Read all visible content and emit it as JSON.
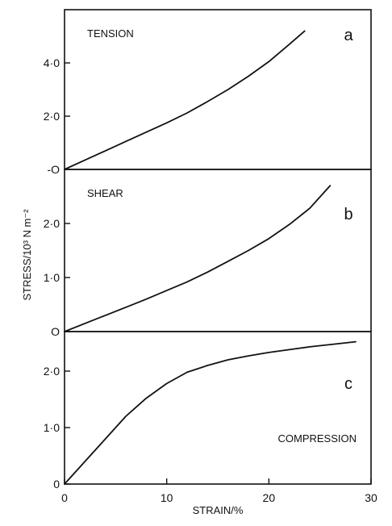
{
  "chart_data": {
    "type": "line",
    "xlabel": "STRAIN/%",
    "ylabel": "STRESS/10³ N m⁻²",
    "xlim": [
      0,
      30
    ],
    "x_ticks": [
      "0",
      "10",
      "20",
      "30"
    ],
    "panels": [
      {
        "letter": "a",
        "label": "TENSION",
        "ylim": [
          0,
          6.0
        ],
        "y_ticks": [
          {
            "value": 0,
            "label": "-O"
          },
          {
            "value": 2.0,
            "label": "2·0"
          },
          {
            "value": 4.0,
            "label": "4·0"
          }
        ],
        "series": [
          {
            "x": [
              0,
              2,
              4,
              6,
              8,
              10,
              12,
              14,
              16,
              18,
              20,
              22,
              23.5
            ],
            "y": [
              0,
              0.35,
              0.7,
              1.05,
              1.4,
              1.75,
              2.12,
              2.55,
              3.0,
              3.5,
              4.05,
              4.7,
              5.2
            ]
          }
        ]
      },
      {
        "letter": "b",
        "label": "SHEAR",
        "ylim": [
          0,
          3.0
        ],
        "y_ticks": [
          {
            "value": 0,
            "label": "O"
          },
          {
            "value": 1.0,
            "label": "1·0"
          },
          {
            "value": 2.0,
            "label": "2·0"
          }
        ],
        "series": [
          {
            "x": [
              0,
              2,
              4,
              6,
              8,
              10,
              12,
              14,
              16,
              18,
              20,
              22,
              24,
              26
            ],
            "y": [
              0,
              0.15,
              0.3,
              0.45,
              0.6,
              0.76,
              0.92,
              1.1,
              1.3,
              1.5,
              1.72,
              1.98,
              2.28,
              2.7
            ]
          }
        ]
      },
      {
        "letter": "c",
        "label": "COMPRESSION",
        "ylim": [
          0,
          2.7
        ],
        "y_ticks": [
          {
            "value": 0,
            "label": "0"
          },
          {
            "value": 1.0,
            "label": "1·0"
          },
          {
            "value": 2.0,
            "label": "2·0"
          }
        ],
        "series": [
          {
            "x": [
              0,
              2,
              4,
              6,
              8,
              10,
              12,
              14,
              16,
              18,
              20,
              22,
              24,
              26,
              28.5
            ],
            "y": [
              0,
              0.4,
              0.8,
              1.2,
              1.52,
              1.78,
              1.98,
              2.1,
              2.2,
              2.27,
              2.33,
              2.38,
              2.43,
              2.47,
              2.52
            ]
          }
        ]
      }
    ]
  }
}
